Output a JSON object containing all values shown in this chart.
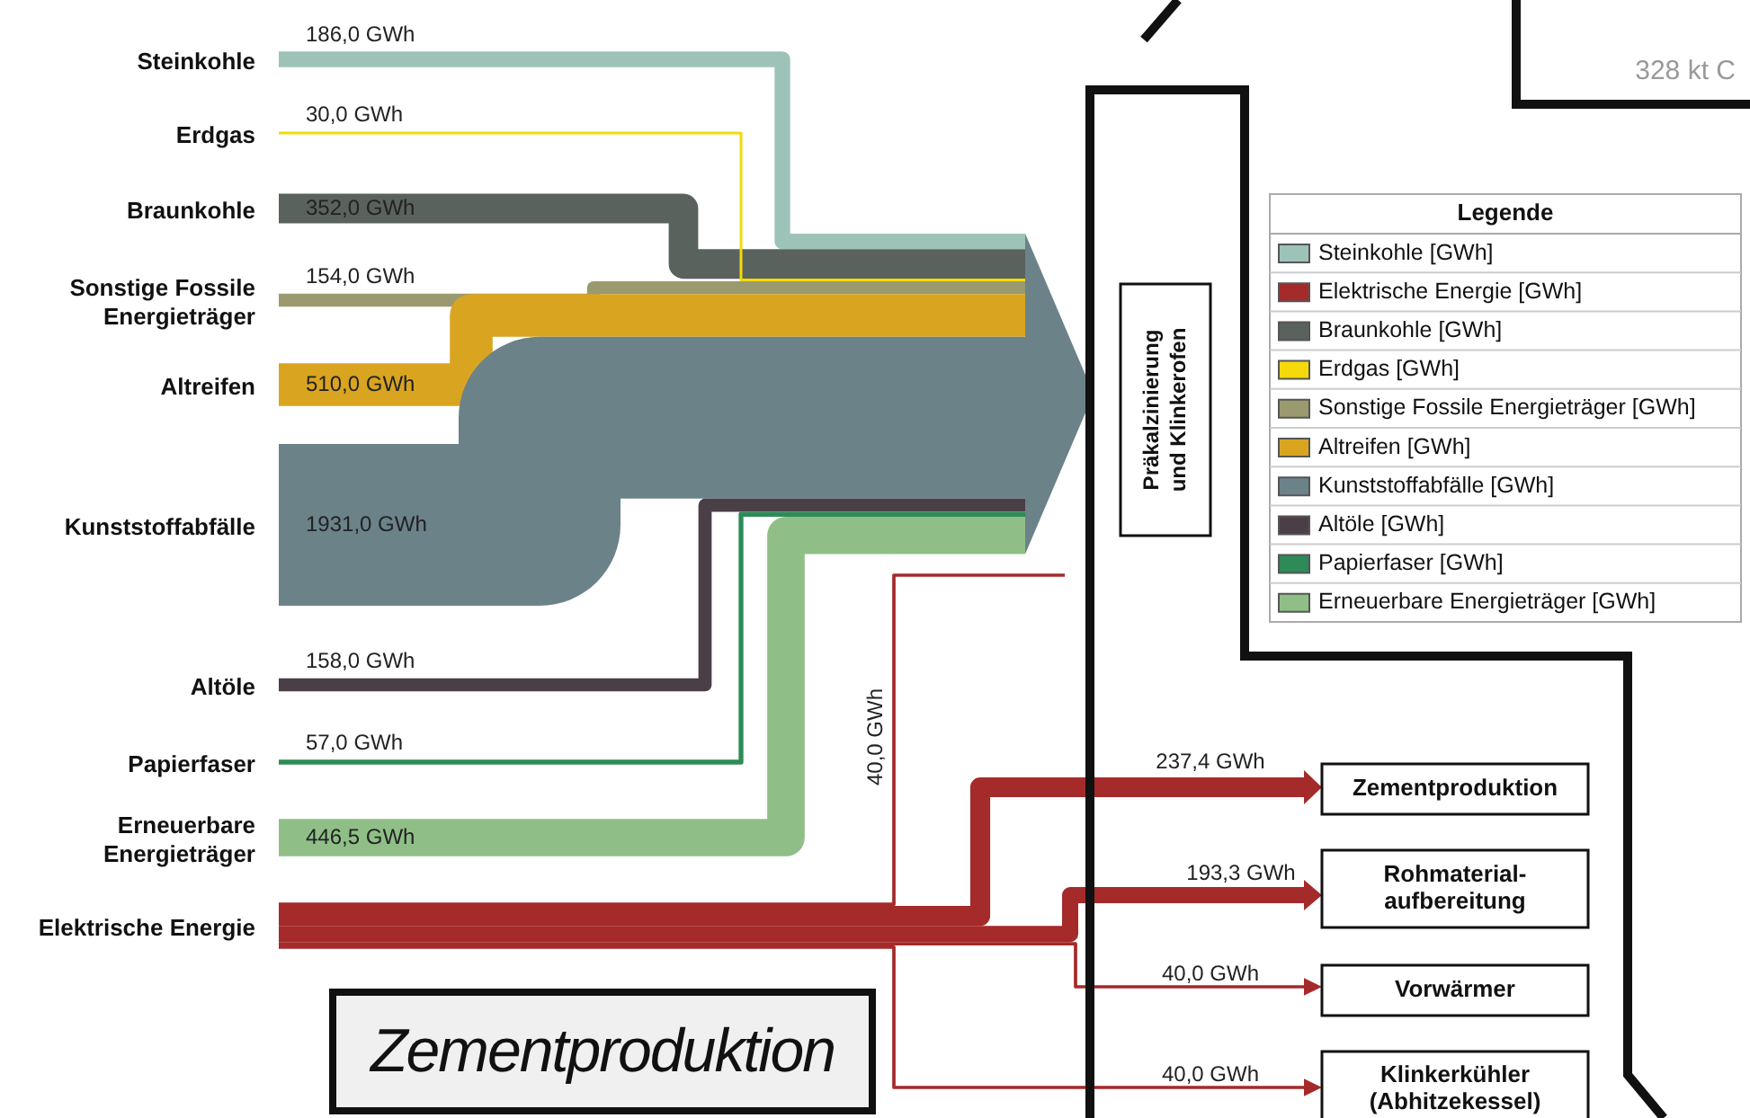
{
  "chart_data": {
    "type": "other",
    "title": "Zementproduktion",
    "categories": [
      "Steinkohle",
      "Erdgas",
      "Braunkohle",
      "Sonstige Fossile Energieträger",
      "Altreifen",
      "Kunststoffabfälle",
      "Altöle",
      "Papierfaser",
      "Erneuerbare Energieträger",
      "Elektrische Energie",
      "Präkalzinierung und Klinkerofen",
      "Zementproduktion",
      "Rohmaterial-aufbereitung",
      "Vorwärmer",
      "Klinkerkühler (Abhitzekessel)"
    ],
    "legend_title": "Legende",
    "legend": "right",
    "series": [
      {
        "name": "Steinkohle [GWh]",
        "color": "#9dc3b9",
        "values": [
          186,
          null,
          null,
          null,
          null,
          null,
          null,
          null,
          null,
          null,
          null,
          null,
          null,
          null,
          null
        ],
        "value_labels": [
          "186,0 GWh",
          null,
          null,
          null,
          null,
          null,
          null,
          null,
          null,
          null,
          null,
          null,
          null,
          null,
          null
        ]
      },
      {
        "name": "Elektrische Energie [GWh]",
        "color": "#a52a2a",
        "values": [
          null,
          null,
          null,
          null,
          null,
          null,
          null,
          null,
          null,
          null,
          40,
          237.4,
          193.3,
          40,
          40
        ],
        "value_labels": [
          null,
          null,
          null,
          null,
          null,
          null,
          null,
          null,
          null,
          null,
          "40,0 GWh",
          "237,4 GWh",
          "193,3 GWh",
          "40,0 GWh",
          "40,0 GWh"
        ]
      },
      {
        "name": "Braunkohle [GWh]",
        "color": "#5a625d",
        "values": [
          null,
          null,
          352,
          null,
          null,
          null,
          null,
          null,
          null,
          null,
          null,
          null,
          null,
          null,
          null
        ],
        "value_labels": [
          null,
          null,
          "352,0 GWh",
          null,
          null,
          null,
          null,
          null,
          null,
          null,
          null,
          null,
          null,
          null,
          null
        ]
      },
      {
        "name": "Erdgas [GWh]",
        "color": "#f5d90a",
        "values": [
          null,
          30,
          null,
          null,
          null,
          null,
          null,
          null,
          null,
          null,
          null,
          null,
          null,
          null,
          null
        ],
        "value_labels": [
          null,
          "30,0 GWh",
          null,
          null,
          null,
          null,
          null,
          null,
          null,
          null,
          null,
          null,
          null,
          null,
          null
        ]
      },
      {
        "name": "Sonstige Fossile Energieträger [GWh]",
        "color": "#9a9a6e",
        "values": [
          null,
          null,
          null,
          154,
          null,
          null,
          null,
          null,
          null,
          null,
          null,
          null,
          null,
          null,
          null
        ],
        "value_labels": [
          null,
          null,
          null,
          "154,0 GWh",
          null,
          null,
          null,
          null,
          null,
          null,
          null,
          null,
          null,
          null,
          null
        ]
      },
      {
        "name": "Altreifen [GWh]",
        "color": "#d9a520",
        "values": [
          null,
          null,
          null,
          null,
          510,
          null,
          null,
          null,
          null,
          null,
          null,
          null,
          null,
          null,
          null
        ],
        "value_labels": [
          null,
          null,
          null,
          null,
          "510,0 GWh",
          null,
          null,
          null,
          null,
          null,
          null,
          null,
          null,
          null,
          null
        ]
      },
      {
        "name": "Kunststoffabfälle [GWh]",
        "color": "#6b8289",
        "values": [
          null,
          null,
          null,
          null,
          null,
          1931,
          null,
          null,
          null,
          null,
          null,
          null,
          null,
          null,
          null
        ],
        "value_labels": [
          null,
          null,
          null,
          null,
          null,
          "1931,0 GWh",
          null,
          null,
          null,
          null,
          null,
          null,
          null,
          null,
          null
        ]
      },
      {
        "name": "Altöle [GWh]",
        "color": "#4b3f47",
        "values": [
          null,
          null,
          null,
          null,
          null,
          null,
          158,
          null,
          null,
          null,
          null,
          null,
          null,
          null,
          null
        ],
        "value_labels": [
          null,
          null,
          null,
          null,
          null,
          null,
          "158,0 GWh",
          null,
          null,
          null,
          null,
          null,
          null,
          null,
          null
        ]
      },
      {
        "name": "Papierfaser [GWh]",
        "color": "#2e8b57",
        "values": [
          null,
          null,
          null,
          null,
          null,
          null,
          null,
          57,
          null,
          null,
          null,
          null,
          null,
          null,
          null
        ],
        "value_labels": [
          null,
          null,
          null,
          null,
          null,
          null,
          null,
          "57,0 GWh",
          null,
          null,
          null,
          null,
          null,
          null,
          null
        ]
      },
      {
        "name": "Erneuerbare Energieträger [GWh]",
        "color": "#8fbf87",
        "values": [
          null,
          null,
          null,
          null,
          null,
          null,
          null,
          null,
          446.5,
          null,
          null,
          null,
          null,
          null,
          null
        ],
        "value_labels": [
          null,
          null,
          null,
          null,
          null,
          null,
          null,
          null,
          "446,5 GWh",
          null,
          null,
          null,
          null,
          null,
          null
        ]
      }
    ],
    "annotations": [
      "328 kt C"
    ]
  }
}
